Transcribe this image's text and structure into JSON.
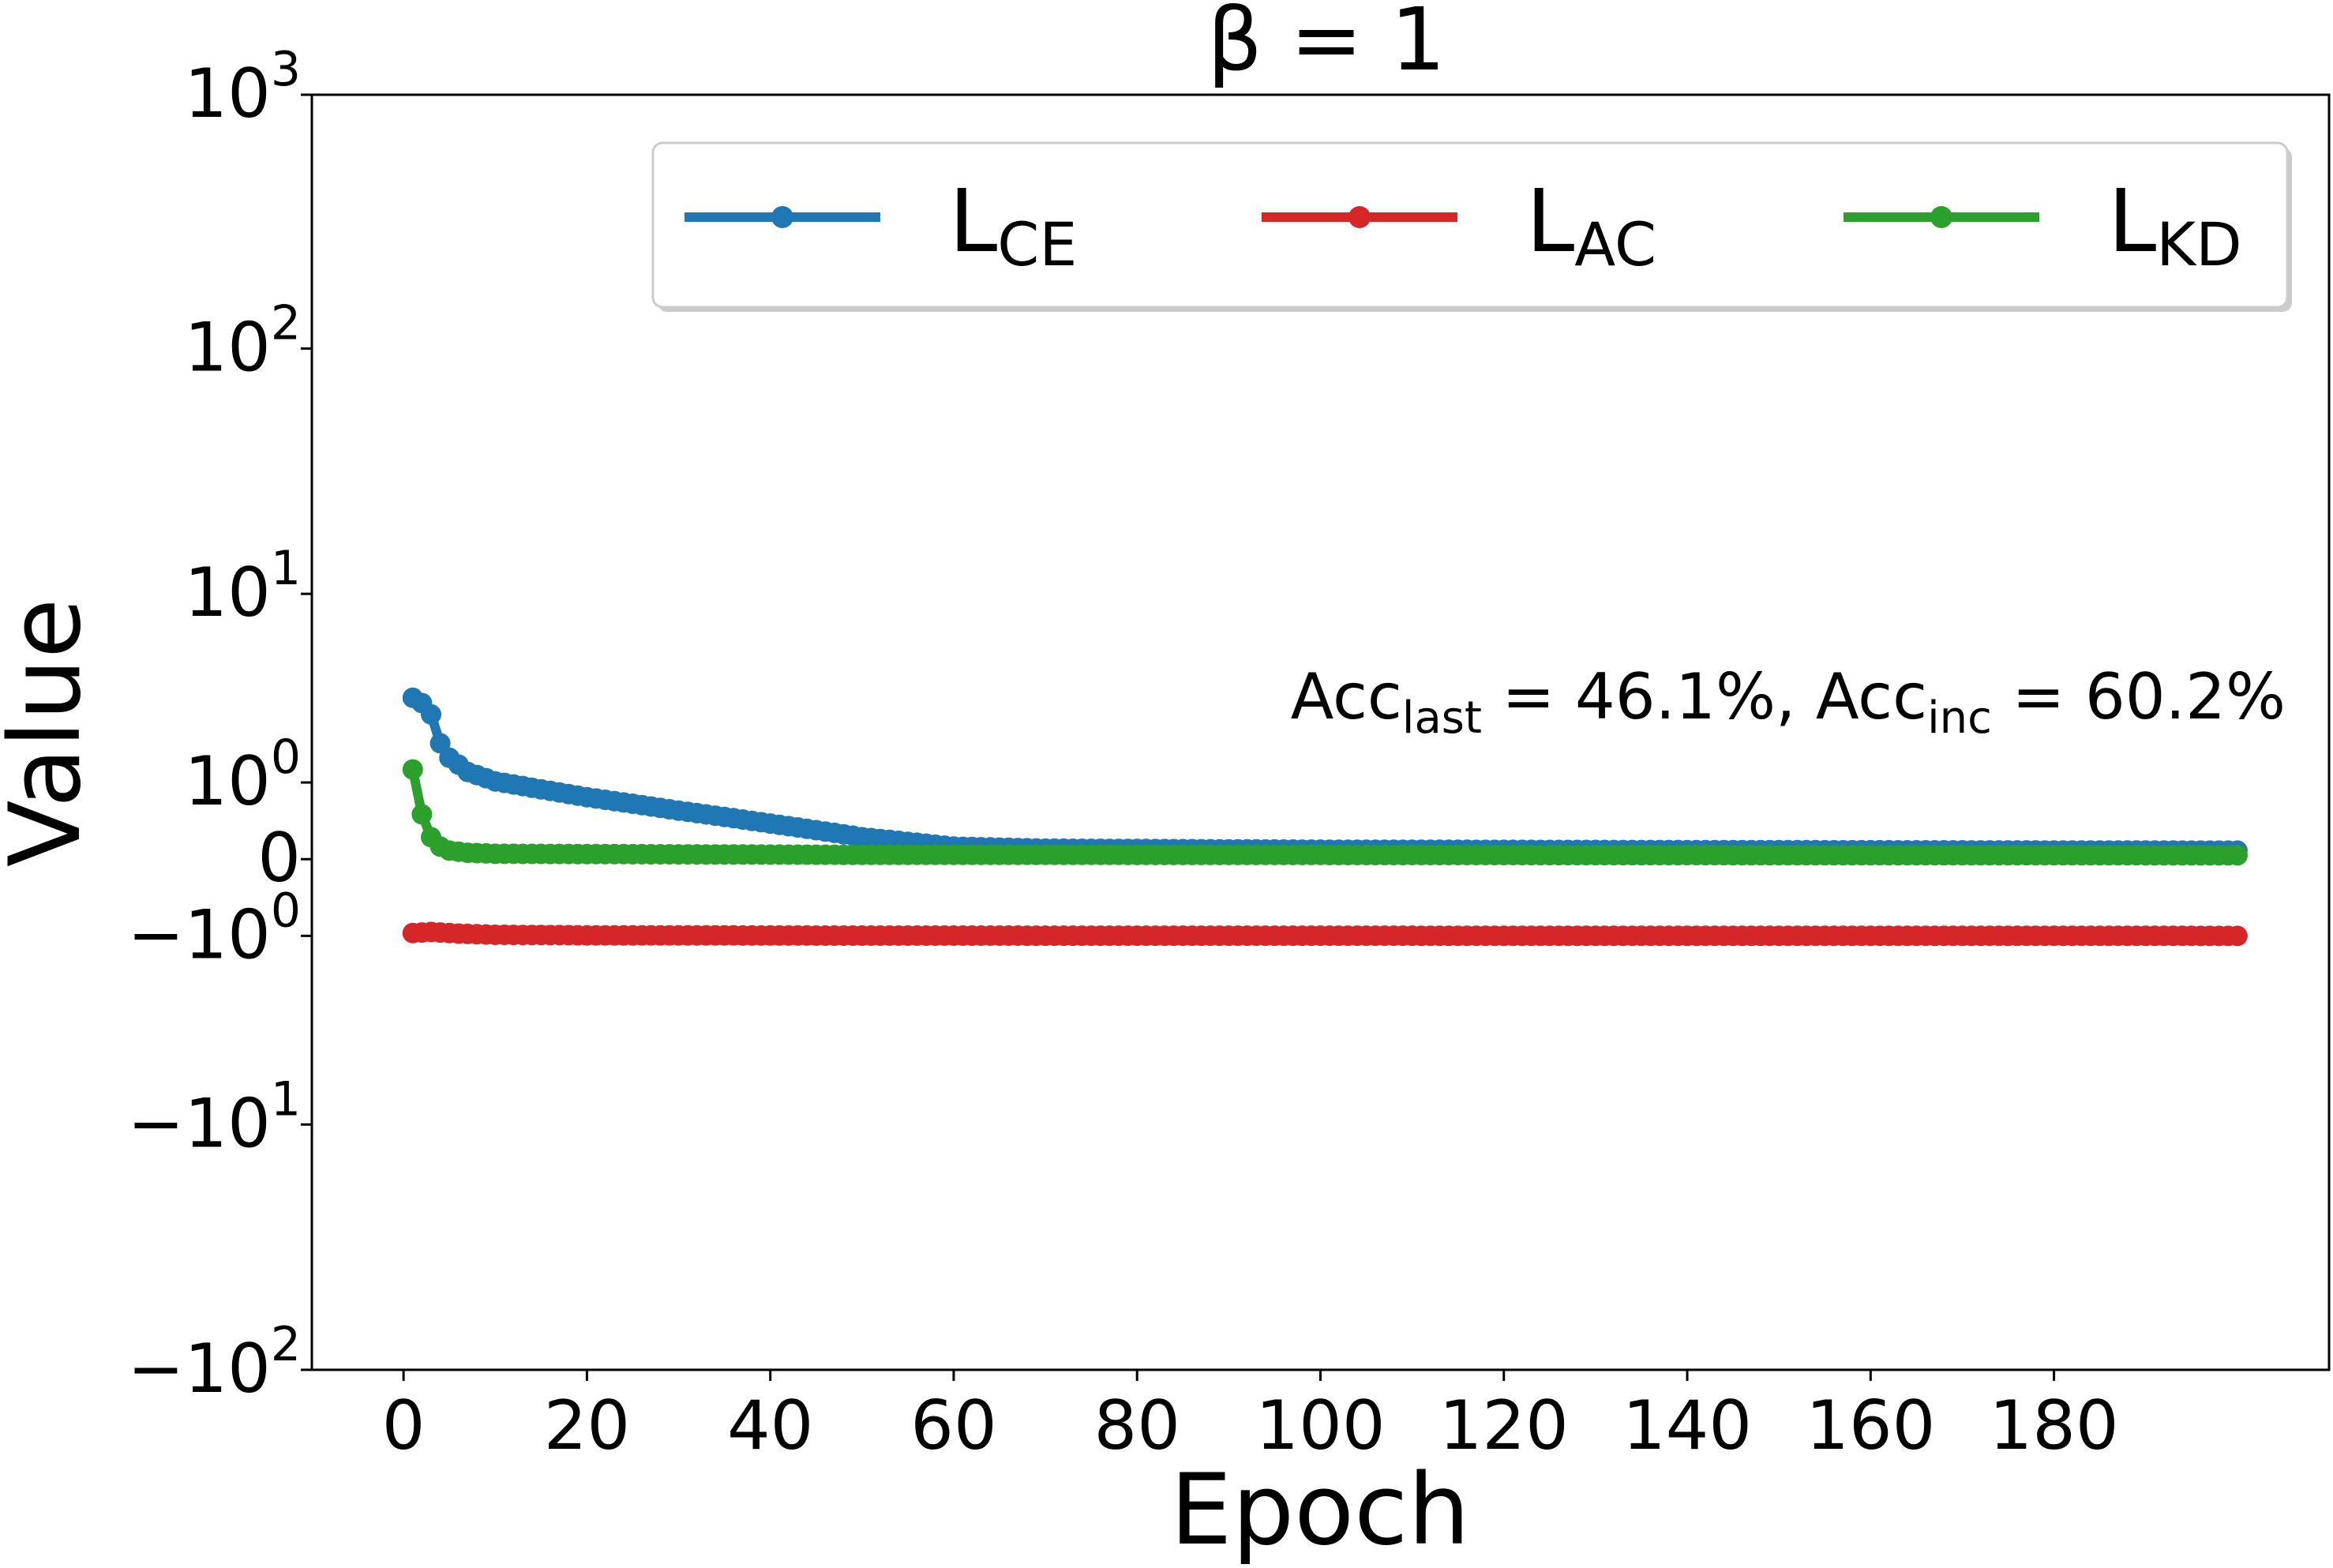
{
  "chart_data": {
    "type": "line",
    "title": "β = 1",
    "xlabel": "Epoch",
    "ylabel": "Value",
    "xlim": [
      -10,
      210
    ],
    "yscale": "symlog",
    "ylim": [
      -100,
      1000
    ],
    "x_ticks": [
      0,
      20,
      40,
      60,
      80,
      100,
      120,
      140,
      160,
      180
    ],
    "y_ticks": [
      {
        "value": 1000,
        "base": "10",
        "exp": "3"
      },
      {
        "value": 100,
        "base": "10",
        "exp": "2"
      },
      {
        "value": 10,
        "base": "10",
        "exp": "1"
      },
      {
        "value": 1,
        "base": "10",
        "exp": "0"
      },
      {
        "value": 0,
        "base": "0",
        "exp": ""
      },
      {
        "value": -1,
        "base": "−10",
        "exp": "0"
      },
      {
        "value": -10,
        "base": "−10",
        "exp": "1"
      },
      {
        "value": -100,
        "base": "−10",
        "exp": "2"
      }
    ],
    "legend": {
      "position": "top-right",
      "entries": [
        {
          "main": "L",
          "sub": "CE",
          "color": "#1f77b4"
        },
        {
          "main": "L",
          "sub": "AC",
          "color": "#d62728"
        },
        {
          "main": "L",
          "sub": "KD",
          "color": "#2ca02c"
        }
      ]
    },
    "annotation": {
      "acc": "Acc",
      "last_sub": "last",
      "eq1": " = 46.1%, ",
      "inc_sub": "inc",
      "eq2": " = 60.2%"
    },
    "series": [
      {
        "name": "L_CE",
        "color": "#1f77b4",
        "epochs": [
          1,
          200
        ],
        "anchors": [
          [
            1,
            3.3
          ],
          [
            2,
            3.1
          ],
          [
            3,
            2.7
          ],
          [
            4,
            1.85
          ],
          [
            5,
            1.5
          ],
          [
            7,
            1.2
          ],
          [
            10,
            1.02
          ],
          [
            15,
            0.88
          ],
          [
            20,
            0.75
          ],
          [
            30,
            0.55
          ],
          [
            40,
            0.38
          ],
          [
            50,
            0.22
          ],
          [
            60,
            0.12
          ],
          [
            70,
            0.1
          ],
          [
            100,
            0.09
          ],
          [
            150,
            0.085
          ],
          [
            200,
            0.08
          ]
        ]
      },
      {
        "name": "L_AC",
        "color": "#d62728",
        "epochs": [
          1,
          200
        ],
        "anchors": [
          [
            1,
            -0.95
          ],
          [
            2,
            -0.94
          ],
          [
            3,
            -0.93
          ],
          [
            4,
            -0.94
          ],
          [
            6,
            -0.96
          ],
          [
            10,
            -0.98
          ],
          [
            20,
            -0.99
          ],
          [
            50,
            -0.995
          ],
          [
            200,
            -1.0
          ]
        ]
      },
      {
        "name": "L_KD",
        "color": "#2ca02c",
        "epochs": [
          1,
          200
        ],
        "anchors": [
          [
            1,
            1.25
          ],
          [
            2,
            0.5
          ],
          [
            3,
            0.22
          ],
          [
            4,
            0.12
          ],
          [
            5,
            0.08
          ],
          [
            7,
            0.06
          ],
          [
            10,
            0.05
          ],
          [
            50,
            0.04
          ],
          [
            200,
            0.035
          ]
        ]
      }
    ]
  }
}
